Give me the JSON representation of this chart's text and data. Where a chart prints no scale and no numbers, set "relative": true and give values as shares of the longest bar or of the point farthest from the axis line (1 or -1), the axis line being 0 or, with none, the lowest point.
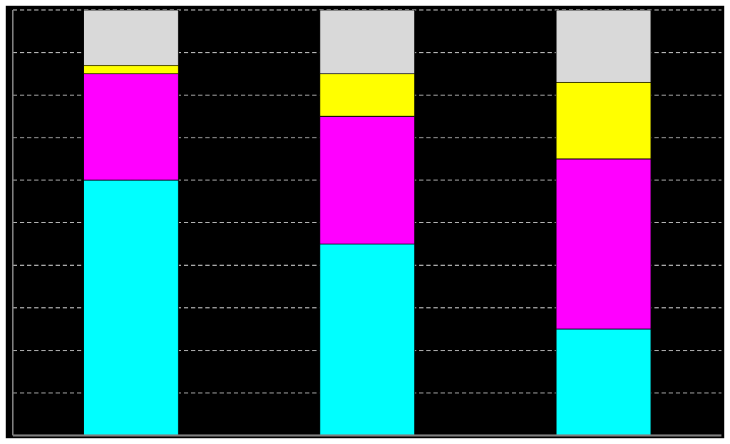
{
  "chart_data": {
    "type": "bar",
    "stacked": true,
    "relative": true,
    "grid": "y",
    "categories": [
      null,
      null,
      null
    ],
    "series": [
      {
        "color": "#00ffff",
        "values": [
          0.6,
          0.45,
          0.25
        ]
      },
      {
        "color": "#ff00ff",
        "values": [
          0.25,
          0.3,
          0.4
        ]
      },
      {
        "color": "#ffff00",
        "values": [
          0.02,
          0.1,
          0.18
        ]
      },
      {
        "color": "#d9d9d9",
        "values": [
          0.13,
          0.15,
          0.17
        ]
      }
    ]
  }
}
